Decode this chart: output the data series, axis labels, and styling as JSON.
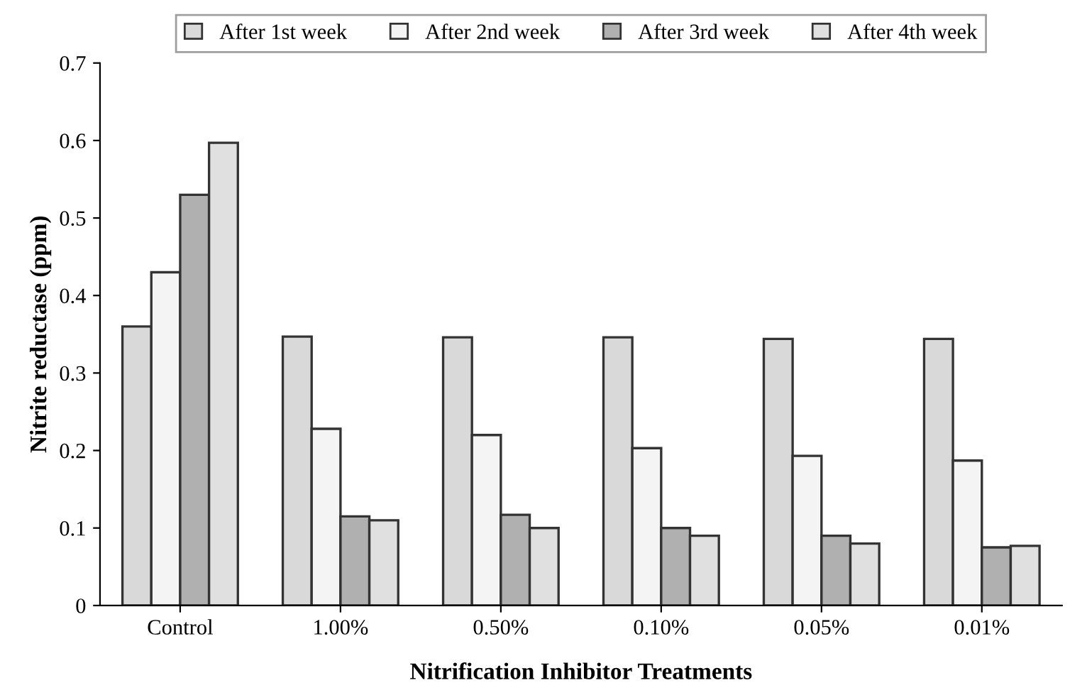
{
  "chart_data": {
    "type": "bar",
    "xlabel": "Nitrification Inhibitor Treatments",
    "ylabel": "Nitrite reductase (ppm)",
    "categories": [
      "Control",
      "1.00%",
      "0.50%",
      "0.10%",
      "0.05%",
      "0.01%"
    ],
    "series": [
      {
        "name": "After 1st week",
        "color": "#d9d9d9",
        "values": [
          0.36,
          0.347,
          0.346,
          0.346,
          0.344,
          0.344
        ]
      },
      {
        "name": "After 2nd week",
        "color": "#f4f4f4",
        "values": [
          0.43,
          0.228,
          0.22,
          0.203,
          0.193,
          0.187
        ]
      },
      {
        "name": "After 3rd week",
        "color": "#b0b0b0",
        "values": [
          0.53,
          0.115,
          0.117,
          0.1,
          0.09,
          0.075
        ]
      },
      {
        "name": "After 4th week",
        "color": "#e0e0e0",
        "values": [
          0.597,
          0.11,
          0.1,
          0.09,
          0.08,
          0.077
        ]
      }
    ],
    "ylim": [
      0,
      0.7
    ],
    "yticks": [
      0,
      0.1,
      0.2,
      0.3,
      0.4,
      0.5,
      0.6,
      0.7
    ],
    "grid": false,
    "legend": "top"
  }
}
